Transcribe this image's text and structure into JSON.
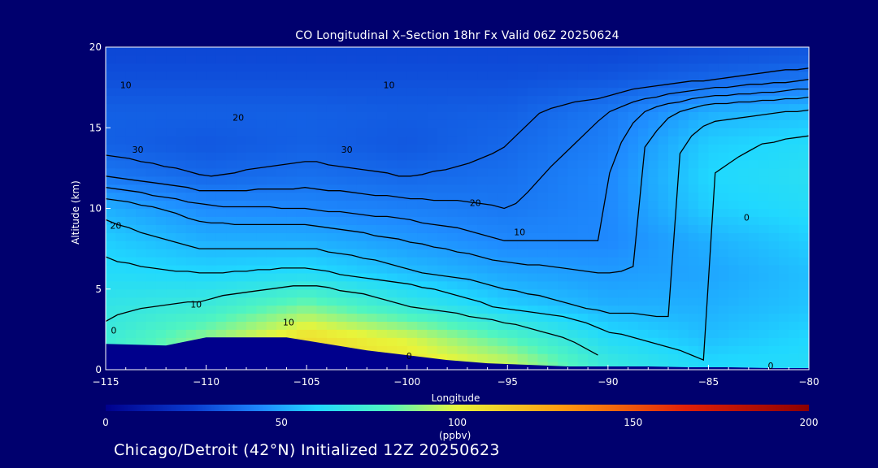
{
  "header": {
    "title": "CO Longitudinal X–Section 18hr  Fx Valid 06Z 20250624"
  },
  "footer": {
    "location": "Chicago/Detroit (42°N) Initialized 12Z 20250623"
  },
  "colorbar": {
    "units": "(ppbv)",
    "ticks": [
      "0",
      "50",
      "100",
      "150",
      "200"
    ],
    "stops": [
      {
        "value": 0,
        "color": "#00008c"
      },
      {
        "value": 25,
        "color": "#0a3ccf"
      },
      {
        "value": 45,
        "color": "#1f8cff"
      },
      {
        "value": 60,
        "color": "#20d8ff"
      },
      {
        "value": 80,
        "color": "#50f5c0"
      },
      {
        "value": 100,
        "color": "#e8f53a"
      },
      {
        "value": 130,
        "color": "#ff9a10"
      },
      {
        "value": 165,
        "color": "#e02008"
      },
      {
        "value": 200,
        "color": "#8c0000"
      }
    ]
  },
  "chart_data": {
    "type": "heatmap",
    "title": "CO Longitudinal X–Section 18hr  Fx Valid 06Z 20250624",
    "xlabel": "Longitude",
    "ylabel": "Altitude (km)",
    "xlim": [
      -115,
      -80
    ],
    "ylim": [
      0,
      20
    ],
    "xticks": [
      "-115",
      "-110",
      "-105",
      "-100",
      "-95",
      "-90",
      "-85",
      "-80"
    ],
    "yticks": [
      "0",
      "5",
      "10",
      "15",
      "20"
    ],
    "colorbar_range": [
      0,
      200
    ],
    "units": "ppbv",
    "lon": [
      -115,
      -110,
      -105,
      -100,
      -95,
      -90,
      -85,
      -80
    ],
    "alt": [
      0.5,
      2,
      4,
      6,
      8,
      10,
      12,
      14,
      16,
      18,
      19.5
    ],
    "values": [
      [
        75,
        90,
        110,
        105,
        95,
        70,
        60,
        62
      ],
      [
        72,
        88,
        108,
        98,
        80,
        62,
        55,
        60
      ],
      [
        68,
        72,
        85,
        70,
        58,
        52,
        52,
        56
      ],
      [
        62,
        60,
        62,
        55,
        50,
        48,
        50,
        55
      ],
      [
        58,
        52,
        52,
        48,
        44,
        44,
        52,
        58
      ],
      [
        52,
        45,
        44,
        42,
        40,
        44,
        58,
        62
      ],
      [
        40,
        36,
        38,
        36,
        38,
        44,
        60,
        64
      ],
      [
        34,
        32,
        34,
        32,
        36,
        42,
        58,
        62
      ],
      [
        34,
        34,
        34,
        33,
        34,
        40,
        52,
        55
      ],
      [
        30,
        30,
        30,
        30,
        30,
        32,
        36,
        40
      ],
      [
        28,
        28,
        28,
        28,
        28,
        28,
        30,
        32
      ]
    ],
    "terrain": {
      "lon": [
        -115,
        -112,
        -110,
        -108,
        -106,
        -104,
        -102,
        -100,
        -98,
        -96,
        -94,
        -92,
        -90,
        -88,
        -86,
        -84,
        -82,
        -80
      ],
      "alt": [
        1.6,
        1.5,
        2.0,
        2.0,
        2.0,
        1.6,
        1.2,
        0.9,
        0.6,
        0.4,
        0.3,
        0.2,
        0.2,
        0.2,
        0.15,
        0.15,
        0.1,
        0.1
      ]
    },
    "contour_labels": [
      {
        "text": "10",
        "lon": -114.0,
        "alt": 17.6
      },
      {
        "text": "10",
        "lon": -100.9,
        "alt": 17.6
      },
      {
        "text": "20",
        "lon": -108.4,
        "alt": 15.6
      },
      {
        "text": "30",
        "lon": -113.4,
        "alt": 13.6
      },
      {
        "text": "30",
        "lon": -103.0,
        "alt": 13.6
      },
      {
        "text": "20",
        "lon": -114.5,
        "alt": 8.9
      },
      {
        "text": "20",
        "lon": -96.6,
        "alt": 10.3
      },
      {
        "text": "10",
        "lon": -94.4,
        "alt": 8.5
      },
      {
        "text": "10",
        "lon": -110.5,
        "alt": 4.0
      },
      {
        "text": "10",
        "lon": -105.9,
        "alt": 2.9
      },
      {
        "text": "0",
        "lon": -114.6,
        "alt": 2.4
      },
      {
        "text": "0",
        "lon": -99.9,
        "alt": 0.8
      },
      {
        "text": "0",
        "lon": -83.1,
        "alt": 9.4
      },
      {
        "text": "0",
        "lon": -81.9,
        "alt": 0.2
      }
    ]
  }
}
